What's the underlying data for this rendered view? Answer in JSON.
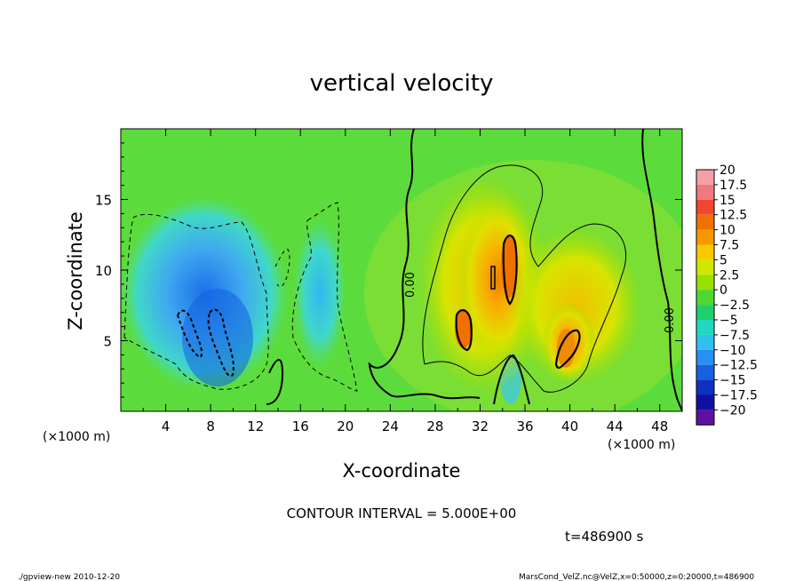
{
  "chart_data": {
    "type": "heatmap",
    "title": "vertical velocity",
    "xlabel": "X-coordinate",
    "ylabel": "Z-coordinate",
    "x_units": "(×1000 m)",
    "y_units": "(×1000 m)",
    "xlim": [
      0,
      50
    ],
    "ylim": [
      0,
      20
    ],
    "x_ticks": [
      4,
      8,
      12,
      16,
      20,
      24,
      28,
      32,
      36,
      40,
      44,
      48
    ],
    "y_ticks": [
      5,
      10,
      15
    ],
    "colorbar": {
      "labels": [
        "20",
        "17.5",
        "15",
        "12.5",
        "10",
        "7.5",
        "5",
        "2.5",
        "0",
        "-2.5",
        "-5",
        "-7.5",
        "-10",
        "-12.5",
        "-15",
        "-17.5",
        "-20"
      ],
      "colors": [
        "#f5a0a8",
        "#f07880",
        "#f04830",
        "#f07000",
        "#f89800",
        "#f8c800",
        "#d0e800",
        "#98e000",
        "#50d830",
        "#20d070",
        "#20d8c0",
        "#30c0f0",
        "#2890f0",
        "#1860e0",
        "#1030c0",
        "#1010a0",
        "#6010a0"
      ]
    },
    "contour_labels": [
      "0.00",
      "0.00"
    ],
    "features": [
      {
        "name": "downdraft",
        "x": 8.5,
        "z": 6.5,
        "value": -12
      },
      {
        "name": "updraft-1",
        "x": 34.5,
        "z": 11,
        "value": 11
      },
      {
        "name": "updraft-2",
        "x": 30.5,
        "z": 6,
        "value": 9
      },
      {
        "name": "updraft-3",
        "x": 39.8,
        "z": 5,
        "value": 8
      }
    ],
    "contour_interval_text": "CONTOUR INTERVAL = 5.000E+00",
    "time_text": "t=486900 s"
  },
  "footer": {
    "left": "./gpview-new   2010-12-20",
    "right": "MarsCond_VelZ.nc@VelZ,x=0:50000,z=0:20000,t=486900"
  }
}
